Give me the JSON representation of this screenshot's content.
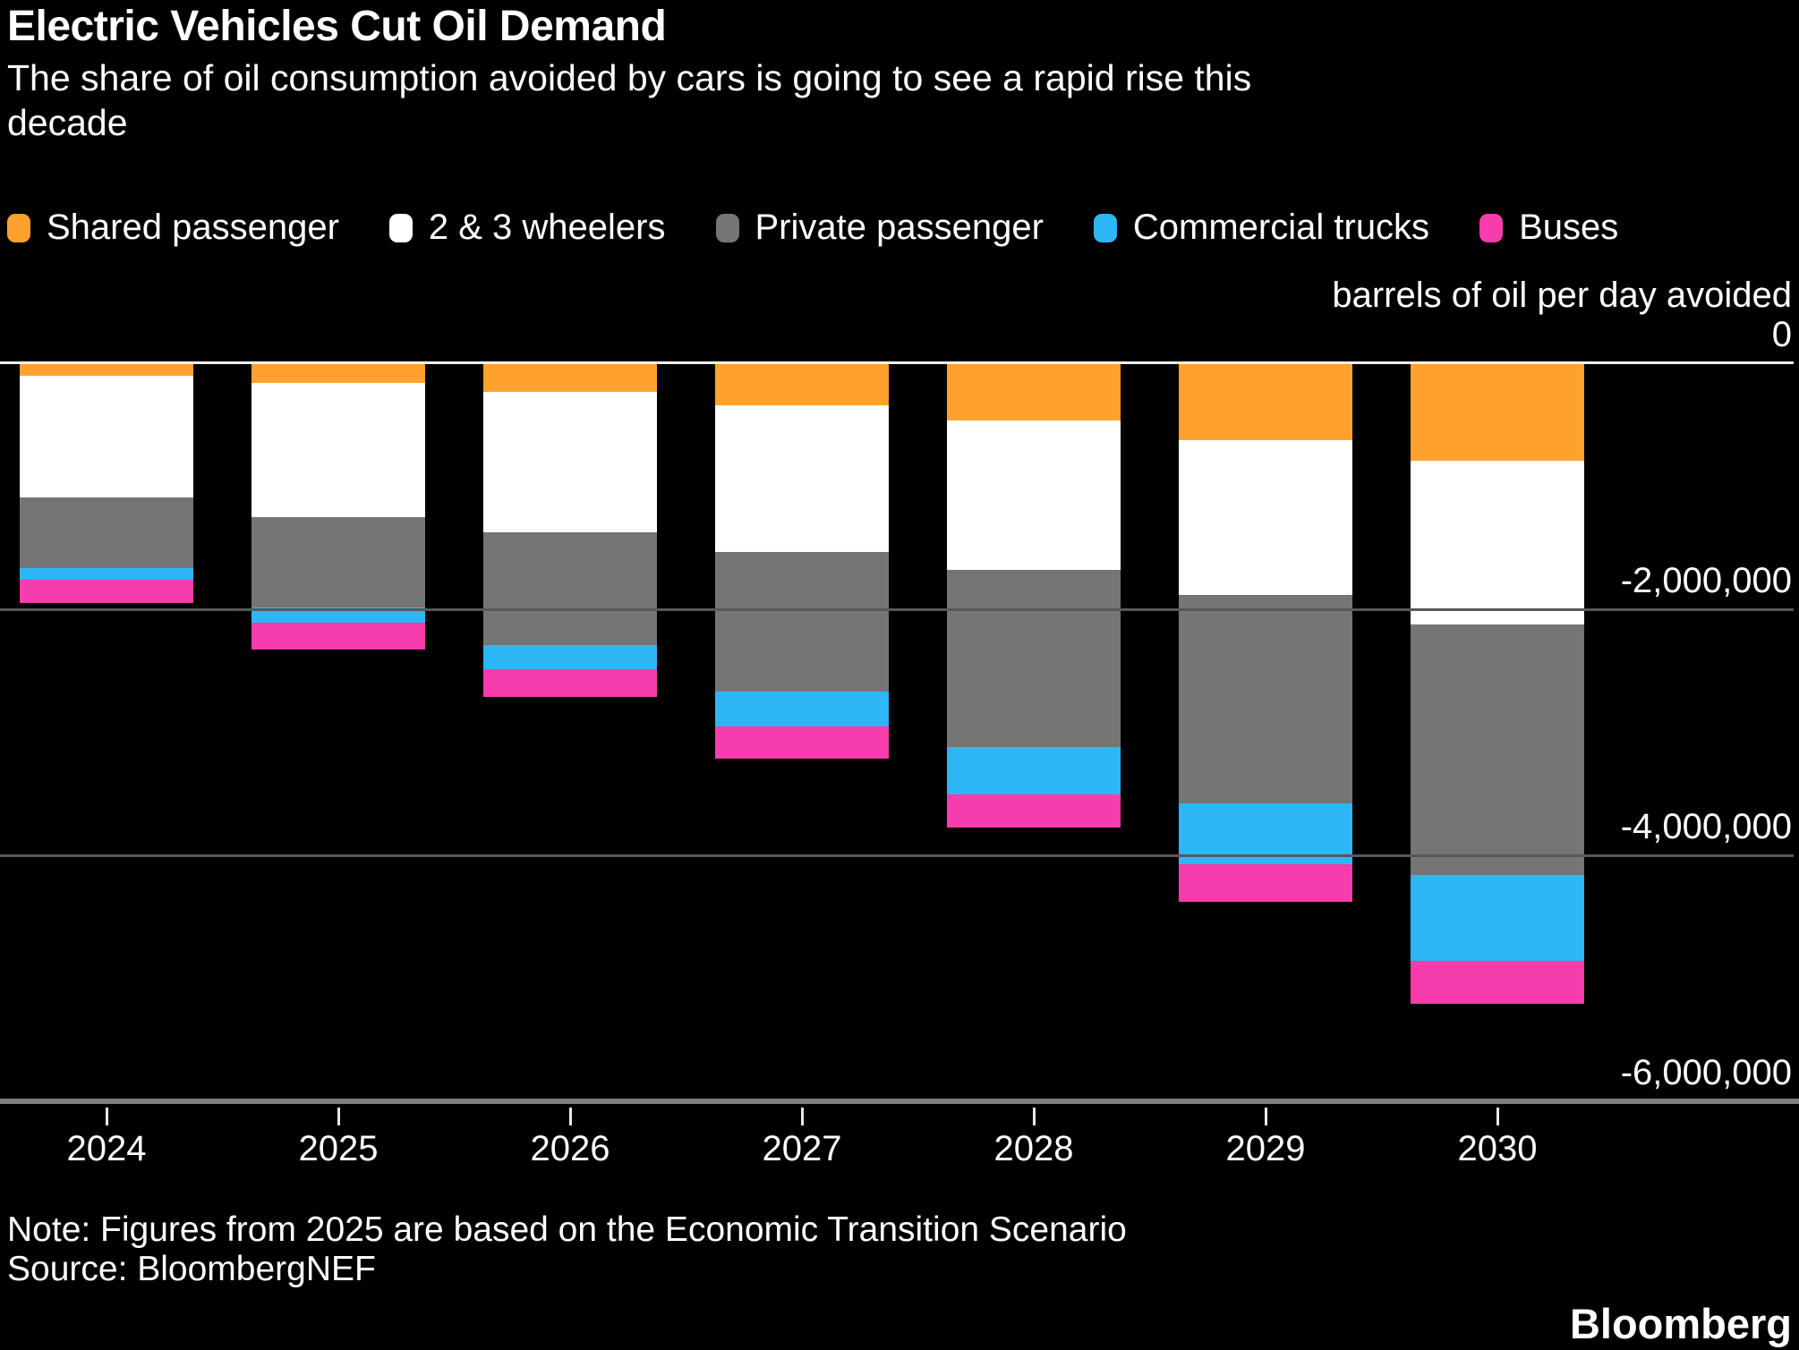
{
  "header": {
    "title": "Electric Vehicles Cut Oil Demand",
    "subtitle": "The share of oil consumption avoided by cars is going to see a rapid rise this decade"
  },
  "legend": [
    {
      "label": "Shared passenger",
      "color": "#FFA12E"
    },
    {
      "label": "2 & 3 wheelers",
      "color": "#FFFFFF"
    },
    {
      "label": "Private passenger",
      "color": "#757575"
    },
    {
      "label": "Commercial trucks",
      "color": "#2EB6F7"
    },
    {
      "label": "Buses",
      "color": "#F73CAE"
    }
  ],
  "axis": {
    "unit_caption": "barrels of oil per day avoided"
  },
  "chart_data": {
    "type": "bar",
    "stacked": true,
    "orientation": "vertical-negative",
    "title": "Electric Vehicles Cut Oil Demand",
    "subtitle": "The share of oil consumption avoided by cars is going to see a rapid rise this decade",
    "ylabel": "barrels of oil per day avoided",
    "categories": [
      "2024",
      "2025",
      "2026",
      "2027",
      "2028",
      "2029",
      "2030"
    ],
    "series": [
      {
        "name": "Shared passenger",
        "color": "#FFA12E",
        "values": [
          -95000,
          -150000,
          -225000,
          -335000,
          -460000,
          -615000,
          -785000
        ]
      },
      {
        "name": "2 & 3 wheelers",
        "color": "#FFFFFF",
        "values": [
          -990000,
          -1095000,
          -1145000,
          -1190000,
          -1215000,
          -1260000,
          -1335000
        ]
      },
      {
        "name": "Private passenger",
        "color": "#757575",
        "values": [
          -570000,
          -730000,
          -915000,
          -1140000,
          -1435000,
          -1695000,
          -2035000
        ]
      },
      {
        "name": "Commercial trucks",
        "color": "#2EB6F7",
        "values": [
          -95000,
          -130000,
          -195000,
          -280000,
          -385000,
          -495000,
          -695000
        ]
      },
      {
        "name": "Buses",
        "color": "#F73CAE",
        "values": [
          -195000,
          -215000,
          -230000,
          -260000,
          -275000,
          -305000,
          -350000
        ]
      }
    ],
    "totals": [
      -1945000,
      -2320000,
      -2710000,
      -3205000,
      -3770000,
      -4370000,
      -5200000
    ],
    "ylim": [
      -6100000,
      0
    ],
    "yticks": [
      0,
      -2000000,
      -4000000,
      -6000000
    ],
    "ytick_labels": [
      "0",
      "-2,000,000",
      "-4,000,000",
      "-6,000,000"
    ],
    "grid": "horizontal",
    "legend_position": "top"
  },
  "footer": {
    "note": "Note: Figures from 2025 are based on the Economic Transition Scenario",
    "source": "Source: BloombergNEF",
    "brand": "Bloomberg"
  }
}
